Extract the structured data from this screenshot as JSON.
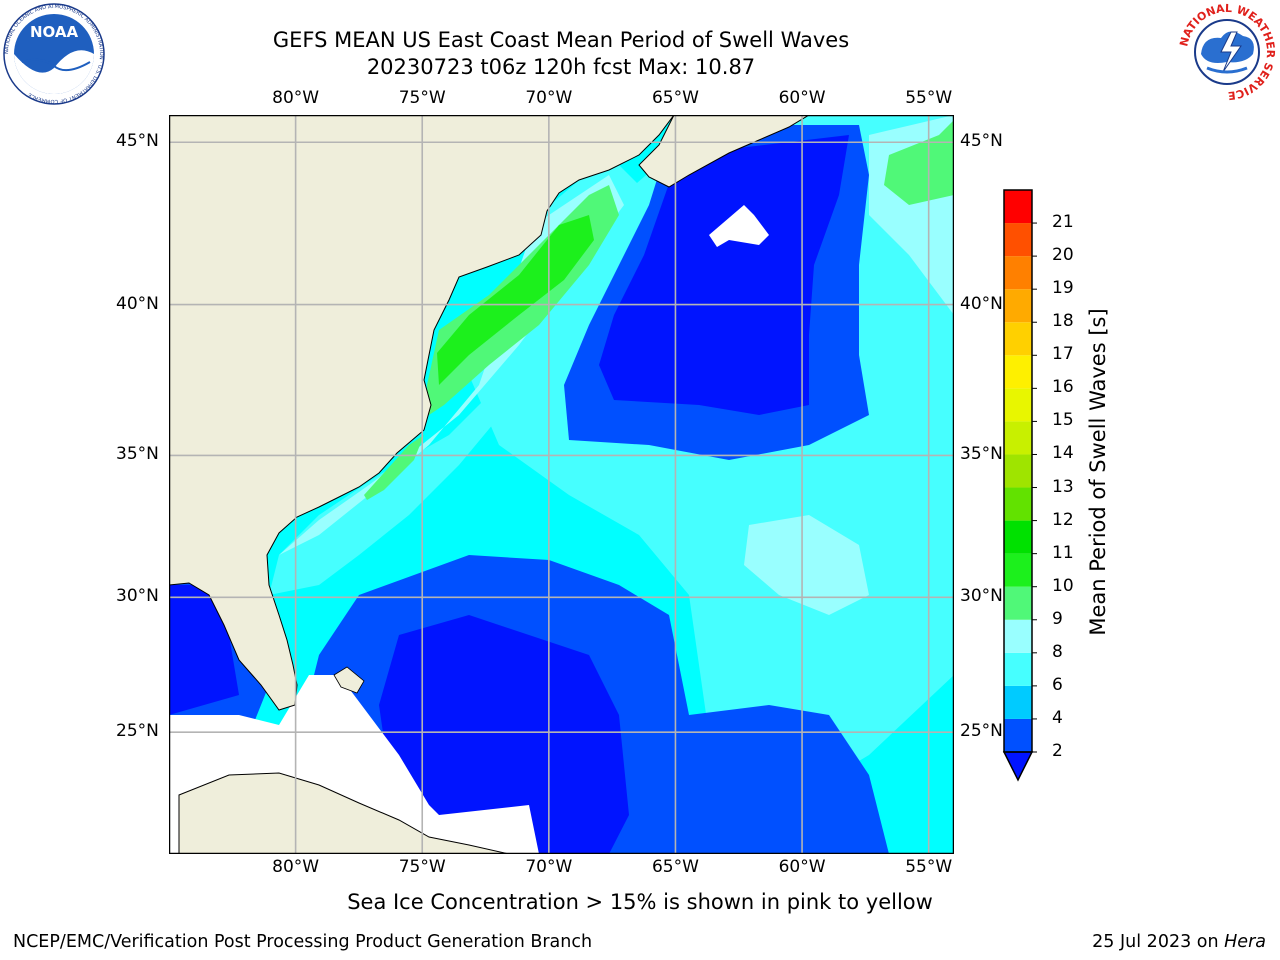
{
  "header": {
    "title_line1": "GEFS MEAN US East Coast Mean Period of Swell Waves",
    "title_line2": "20230723 t06z 120h fcst   Max: 10.87",
    "noara_logo_text": "NOAA",
    "noara_logo_ring": "NATIONAL OCEANIC AND ATMOSPHERIC ADMINISTRATION · U.S. DEPARTMENT OF COMMERCE",
    "nws_logo_ring": "NATIONAL WEATHER SERVICE"
  },
  "map": {
    "lon_range": [
      -85,
      -54
    ],
    "lat_range": [
      20.3,
      45.8
    ],
    "lon_ticks": [
      "80°W",
      "75°W",
      "70°W",
      "65°W",
      "60°W",
      "55°W"
    ],
    "lat_ticks": [
      "45°N",
      "40°N",
      "35°N",
      "30°N",
      "25°N"
    ],
    "gridlines": true,
    "land_color": "#efeedb",
    "no_data_color": "#ffffff"
  },
  "colorbar": {
    "label": "Mean Period of Swell Waves [s]",
    "levels": [
      "2",
      "4",
      "6",
      "8",
      "9",
      "10",
      "11",
      "12",
      "13",
      "14",
      "15",
      "16",
      "17",
      "18",
      "19",
      "20",
      "21"
    ],
    "colors": [
      "#0050ff",
      "#00cbff",
      "#46ffff",
      "#99ffff",
      "#50f878",
      "#1cf01c",
      "#00e100",
      "#62e200",
      "#9fe400",
      "#c8f000",
      "#e8f600",
      "#fef000",
      "#ffd000",
      "#ffaa00",
      "#ff8000",
      "#ff5000",
      "#ff0000"
    ],
    "under_color": "#0014ff",
    "placement": "right"
  },
  "notes": {
    "sea_ice": "Sea Ice Concentration > 15% is shown in pink to yellow"
  },
  "footer": {
    "left": "NCEP/EMC/Verification Post Processing Product Generation Branch",
    "date": "25 Jul 2023 on ",
    "machine": "Hera"
  }
}
